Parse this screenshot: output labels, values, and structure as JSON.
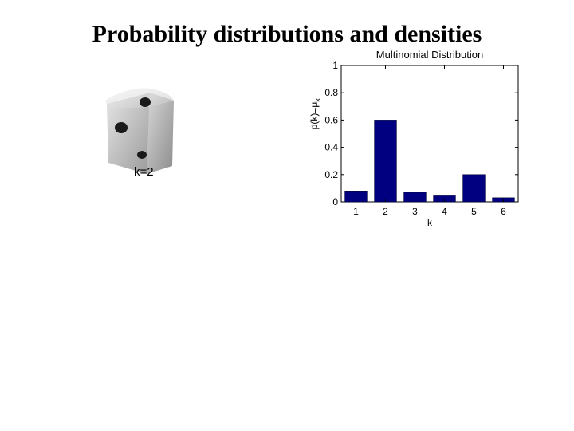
{
  "slide": {
    "title": "Probability distributions and densities"
  },
  "die": {
    "caption": "k=2"
  },
  "chart_data": {
    "type": "bar",
    "title": "Multinomial Distribution",
    "xlabel": "k",
    "ylabel": "p(k)=μ_k",
    "categories": [
      "1",
      "2",
      "3",
      "4",
      "5",
      "6"
    ],
    "values": [
      0.08,
      0.6,
      0.07,
      0.05,
      0.2,
      0.03
    ],
    "ylim": [
      0,
      1
    ],
    "yticks": [
      "0",
      "0.2",
      "0.4",
      "0.6",
      "0.8",
      "1"
    ],
    "grid": false,
    "bar_color": "#000080"
  }
}
